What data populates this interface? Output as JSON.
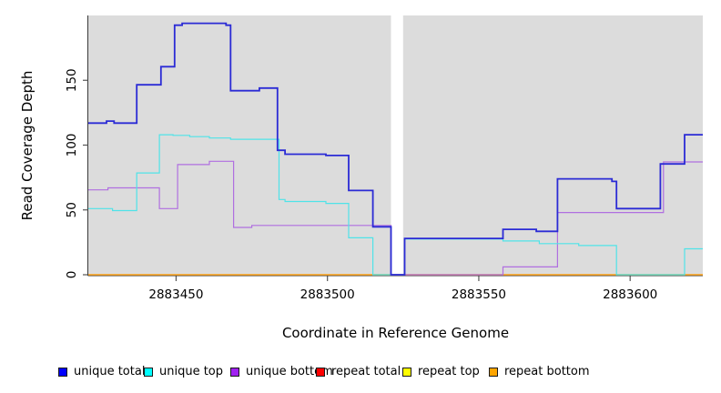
{
  "figure": {
    "xlabel": "Coordinate in Reference Genome",
    "ylabel": "Read Coverage Depth",
    "panel_bg": "#DCDCDC",
    "page_bg": "#FFFFFF",
    "axis_color": "#3a3a3a",
    "tick_color": "#555555",
    "text_color": "#000000"
  },
  "legend": {
    "items": [
      {
        "label": "unique total",
        "marker_color": "#0000FF",
        "x": 64
      },
      {
        "label": "unique top",
        "marker_color": "#00FFFF",
        "x": 158
      },
      {
        "label": "unique bottom",
        "marker_color": "#A020F0",
        "x": 253
      },
      {
        "label": "repeat total",
        "marker_color": "#FF0000",
        "x": 347
      },
      {
        "label": "repeat top",
        "marker_color": "#FFFF00",
        "x": 442
      },
      {
        "label": "repeat bottom",
        "marker_color": "#FFA500",
        "x": 537
      }
    ]
  },
  "chart_data": {
    "type": "line",
    "subtype": "step",
    "title": "",
    "xlabel": "Coordinate in Reference Genome",
    "ylabel": "Read Coverage Depth",
    "xlim": [
      2883421,
      2883624
    ],
    "ylim": [
      0,
      200
    ],
    "x_ticks": [
      2883450,
      2883500,
      2883550,
      2883600
    ],
    "y_ticks": [
      0,
      50,
      100,
      150
    ],
    "grid": false,
    "legend_position": "bottom",
    "gap_region": {
      "x_start": 2883521,
      "x_end": 2883525
    },
    "series": [
      {
        "name": "unique total",
        "line_color": "#2B2BD5",
        "line_width": 1.8,
        "steps": [
          [
            2883421,
            117
          ],
          [
            2883427,
            118.5
          ],
          [
            2883429.5,
            117
          ],
          [
            2883437,
            146.5
          ],
          [
            2883445,
            160.5
          ],
          [
            2883449.5,
            192.5
          ],
          [
            2883452,
            194
          ],
          [
            2883466.5,
            192.5
          ],
          [
            2883468,
            142
          ],
          [
            2883477.5,
            144
          ],
          [
            2883483.5,
            96
          ],
          [
            2883486,
            93
          ],
          [
            2883499.5,
            92
          ],
          [
            2883507,
            65
          ],
          [
            2883515,
            37
          ],
          [
            2883521,
            0
          ],
          [
            2883525.5,
            28
          ],
          [
            2883558,
            35
          ],
          [
            2883569,
            33.5
          ],
          [
            2883576,
            74
          ],
          [
            2883594,
            72
          ],
          [
            2883595.5,
            51
          ],
          [
            2883610,
            85.5
          ],
          [
            2883618,
            108
          ]
        ]
      },
      {
        "name": "unique top",
        "line_color": "#4FE3E8",
        "line_width": 1.2,
        "steps": [
          [
            2883421,
            51
          ],
          [
            2883429,
            49.5
          ],
          [
            2883437,
            78.5
          ],
          [
            2883444.5,
            108
          ],
          [
            2883449,
            107.5
          ],
          [
            2883454.5,
            106.5
          ],
          [
            2883461,
            105.5
          ],
          [
            2883468,
            104.5
          ],
          [
            2883484,
            58
          ],
          [
            2883486,
            56.5
          ],
          [
            2883499.5,
            55
          ],
          [
            2883507,
            28.5
          ],
          [
            2883515,
            0
          ],
          [
            2883525.5,
            27.5
          ],
          [
            2883558,
            26
          ],
          [
            2883570,
            24
          ],
          [
            2883583,
            22.5
          ],
          [
            2883595.5,
            0
          ],
          [
            2883618,
            20
          ]
        ]
      },
      {
        "name": "unique bottom",
        "line_color": "#B06FE0",
        "line_width": 1.2,
        "steps": [
          [
            2883421,
            65.5
          ],
          [
            2883427.5,
            67
          ],
          [
            2883444.5,
            51
          ],
          [
            2883450.5,
            85
          ],
          [
            2883461,
            87.5
          ],
          [
            2883469,
            36.5
          ],
          [
            2883475,
            38
          ],
          [
            2883521,
            0
          ],
          [
            2883558,
            6
          ],
          [
            2883576,
            48
          ],
          [
            2883611,
            87
          ]
        ]
      },
      {
        "name": "repeat total",
        "line_color": "#EE0000",
        "line_width": 1.0,
        "steps": [
          [
            2883421,
            0
          ]
        ]
      },
      {
        "name": "repeat top",
        "line_color": "#FFFF00",
        "line_width": 1.0,
        "steps": [
          [
            2883421,
            0
          ]
        ]
      },
      {
        "name": "repeat bottom",
        "line_color": "#FFA319",
        "line_width": 1.5,
        "steps": [
          [
            2883421,
            0
          ]
        ]
      }
    ]
  }
}
